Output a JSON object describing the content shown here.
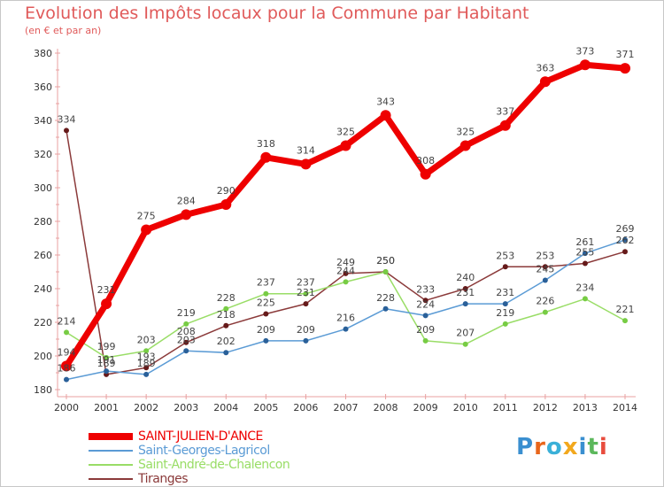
{
  "header": {
    "title": "Evolution des Impôts locaux pour la Commune par Habitant",
    "subtitle": "(en € et par an)"
  },
  "logo": {
    "text": "Proxiti",
    "colors": [
      "#3a8fd0",
      "#e8661b",
      "#3ab0d8",
      "#f2a81d",
      "#3a8fd0",
      "#5cb85c",
      "#e84c3d"
    ]
  },
  "chart_data": {
    "type": "line",
    "categories": [
      "2000",
      "2001",
      "2002",
      "2003",
      "2004",
      "2005",
      "2006",
      "2007",
      "2008",
      "2009",
      "2010",
      "2011",
      "2012",
      "2013",
      "2014"
    ],
    "ylim": [
      180,
      380
    ],
    "yticks": [
      180,
      200,
      220,
      240,
      260,
      280,
      300,
      320,
      340,
      360,
      380
    ],
    "grid": false,
    "legend_position": "bottom-left",
    "series": [
      {
        "name": "SAINT-JULIEN-D'ANCE",
        "color": "#ee0000",
        "width": 7,
        "marker_color": "#ee0000",
        "marker_r": 6,
        "values": [
          194,
          231,
          275,
          284,
          290,
          318,
          314,
          325,
          343,
          308,
          325,
          337,
          363,
          373,
          371
        ],
        "labels": [
          "194",
          "231",
          "275",
          "284",
          "290",
          "318",
          "314",
          "325",
          "343",
          "308",
          "325",
          "337",
          "363",
          "373",
          "371"
        ]
      },
      {
        "name": "Saint-Georges-Lagricol",
        "color": "#5b9bd5",
        "width": 1.5,
        "marker_color": "#2a6099",
        "marker_r": 3,
        "values": [
          186,
          191,
          189,
          203,
          202,
          209,
          209,
          216,
          228,
          224,
          231,
          231,
          245,
          261,
          269
        ],
        "labels": [
          "186",
          "191",
          "189",
          "203",
          "202",
          "209",
          "209",
          "216",
          "228",
          "224",
          "231",
          "231",
          "245",
          "261",
          "269"
        ]
      },
      {
        "name": "Saint-André-de-Chalencon",
        "color": "#99dd66",
        "width": 1.5,
        "marker_color": "#77cc44",
        "marker_r": 3,
        "values": [
          214,
          199,
          203,
          219,
          228,
          237,
          237,
          244,
          250,
          209,
          207,
          219,
          226,
          234,
          221
        ],
        "labels": [
          "214",
          "199",
          "203",
          "219",
          "228",
          "237",
          "237",
          "244",
          "250",
          "209",
          "207",
          "219",
          "226",
          "234",
          "221"
        ]
      },
      {
        "name": "Tiranges",
        "color": "#8b3a3a",
        "width": 1.5,
        "marker_color": "#661a1a",
        "marker_r": 3,
        "values": [
          334,
          189,
          193,
          208,
          218,
          225,
          231,
          249,
          250,
          233,
          240,
          253,
          253,
          255,
          262
        ],
        "labels": [
          "334",
          "189",
          "193",
          "208",
          "218",
          "225",
          "231",
          "249",
          "250",
          "233",
          "240",
          "253",
          "253",
          "255",
          "262"
        ]
      }
    ]
  }
}
